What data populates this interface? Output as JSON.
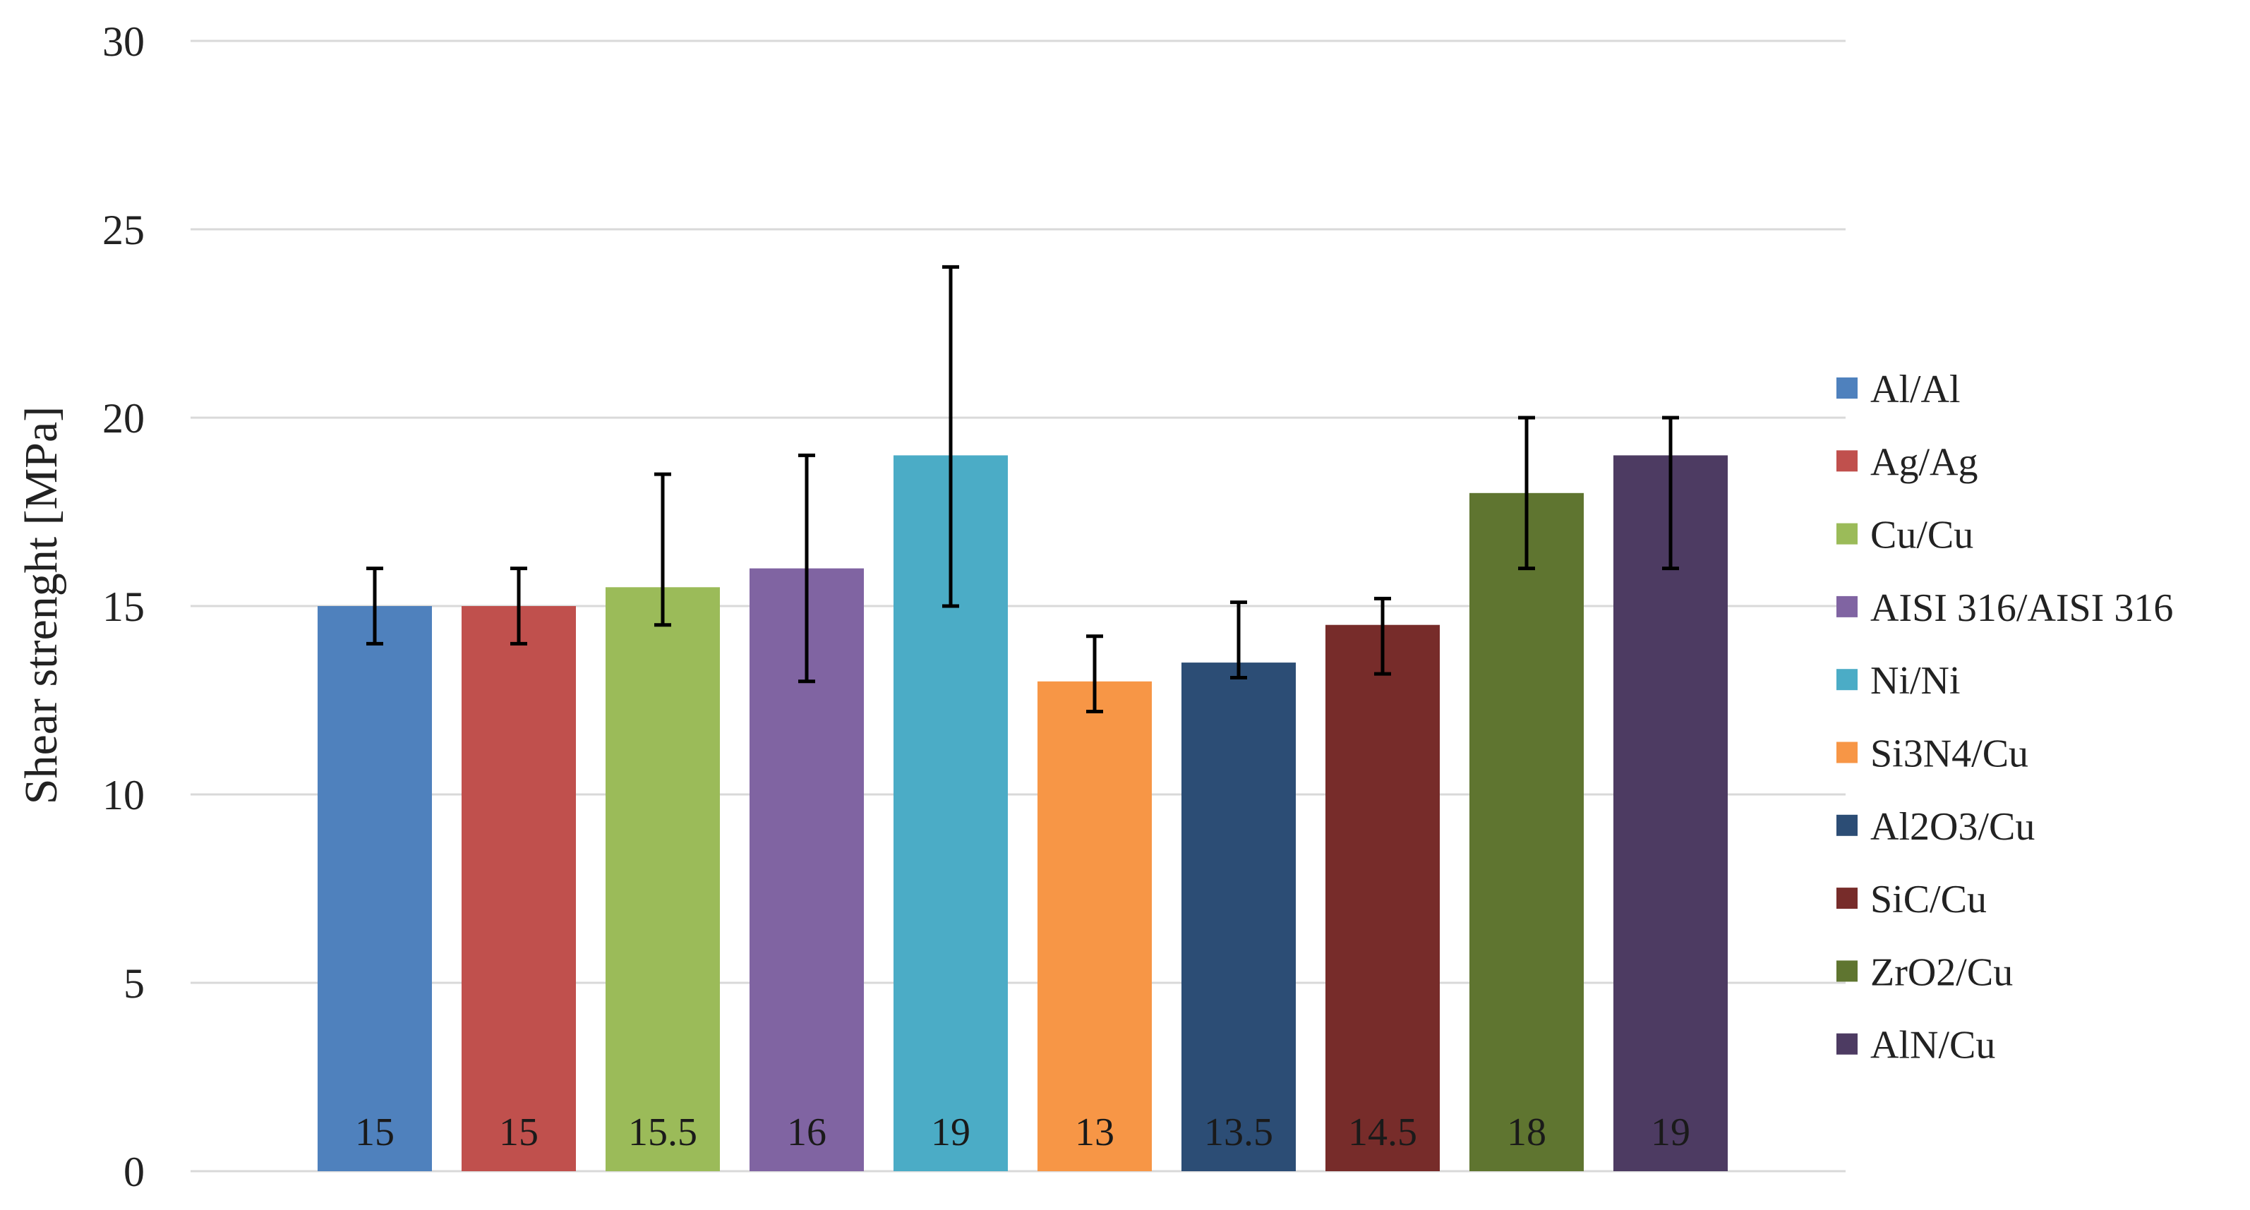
{
  "chart_data": {
    "type": "bar",
    "title": "",
    "xlabel": "",
    "ylabel": "Shear strenght [MPa]",
    "ylim": [
      0,
      30
    ],
    "yticks": [
      0,
      5,
      10,
      15,
      20,
      25,
      30
    ],
    "grid": true,
    "legend_position": "right",
    "categories": [
      "Al/Al",
      "Ag/Ag",
      "Cu/Cu",
      "AISI 316/AISI 316",
      "Ni/Ni",
      "Si3N4/Cu",
      "Al2O3/Cu",
      "SiC/Cu",
      "ZrO2/Cu",
      "AlN/Cu"
    ],
    "values": [
      15,
      15,
      15.5,
      16,
      19,
      13,
      13.5,
      14.5,
      18,
      19
    ],
    "value_labels": [
      "15",
      "15",
      "15.5",
      "16",
      "19",
      "13",
      "13.5",
      "14.5",
      "18",
      "19"
    ],
    "error_high": [
      16,
      16,
      18.5,
      19,
      24,
      14.2,
      15.1,
      15.2,
      20,
      20
    ],
    "error_low": [
      14,
      14,
      14.5,
      13,
      15,
      12.2,
      13.1,
      13.2,
      16,
      16
    ],
    "colors": [
      "#4f81bd",
      "#c0504d",
      "#9bbb59",
      "#8064a2",
      "#4bacc6",
      "#f79646",
      "#2c4d75",
      "#772c2a",
      "#5f7530",
      "#4d3b62"
    ]
  }
}
